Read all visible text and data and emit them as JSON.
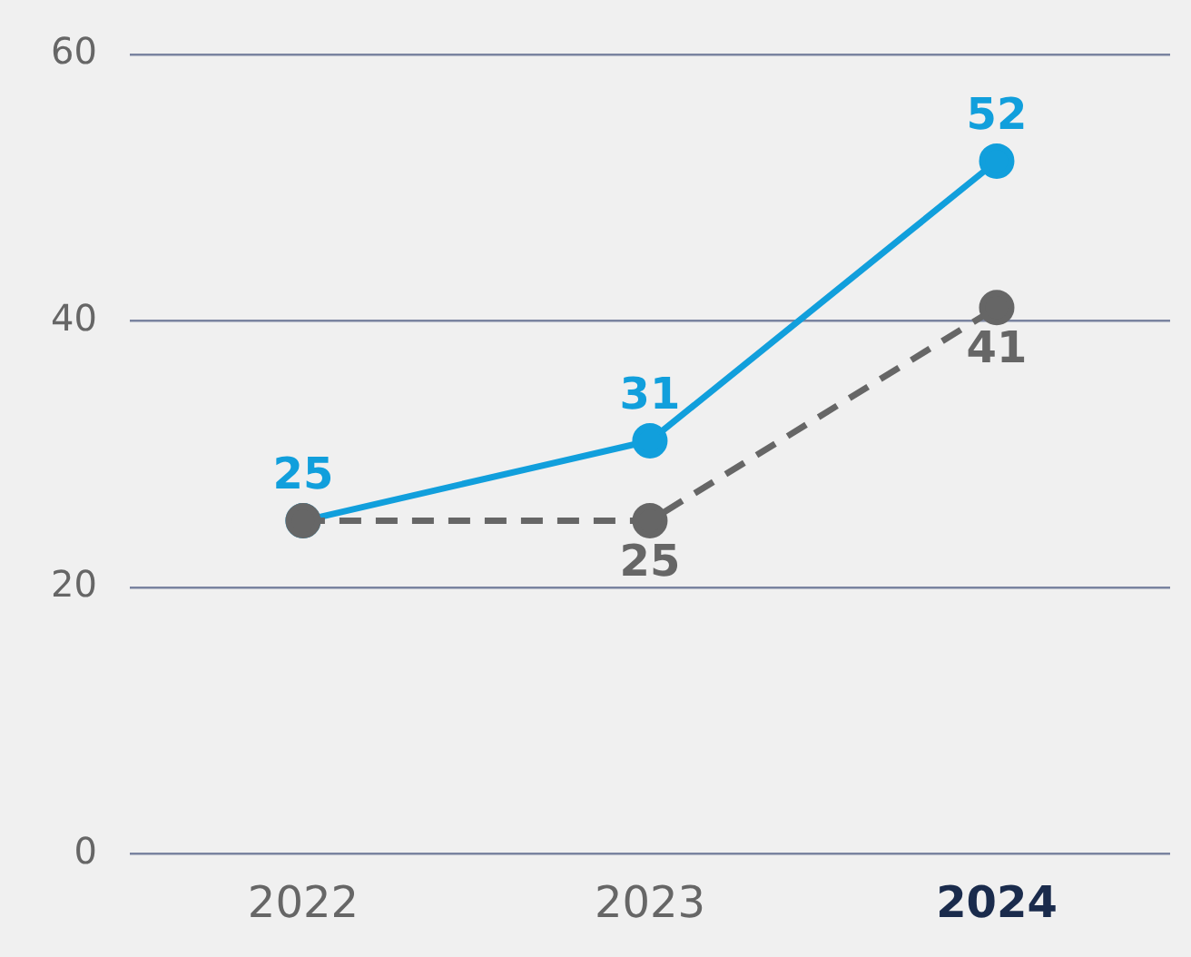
{
  "chart_data": {
    "type": "line",
    "categories": [
      "2022",
      "2023",
      "2024"
    ],
    "series": [
      {
        "color": "#119fdc",
        "values": [
          25,
          31,
          52
        ],
        "value_labels": [
          "25",
          "31",
          "52"
        ],
        "line_style": "solid"
      },
      {
        "color": "#666666",
        "values": [
          25,
          25,
          41
        ],
        "value_labels": [
          null,
          "25",
          "41"
        ],
        "line_style": "dashed"
      }
    ],
    "ylim": [
      0,
      60
    ],
    "yticks": [
      0,
      20,
      40,
      60
    ],
    "grid": "y",
    "marker": "circle",
    "legend": false
  }
}
